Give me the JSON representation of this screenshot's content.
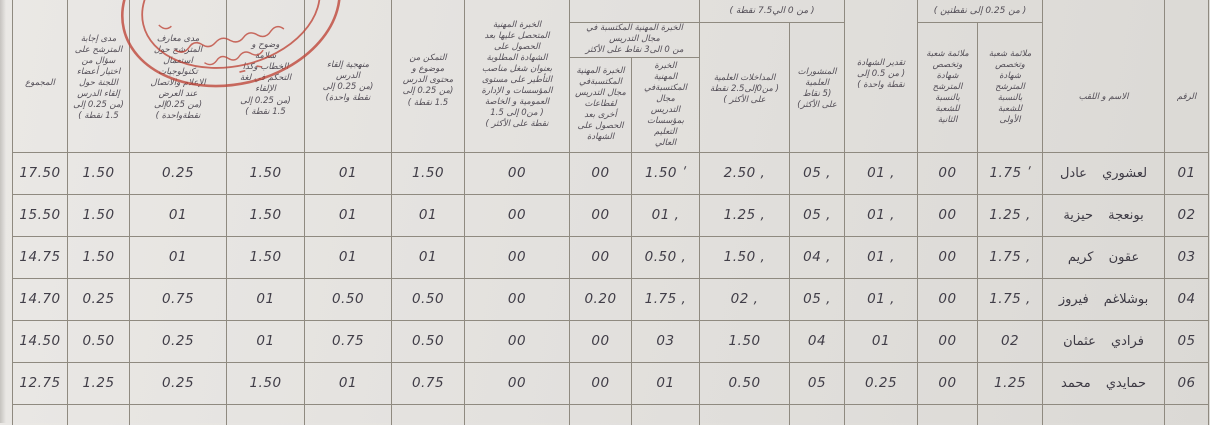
{
  "document": {
    "kind": "scanned evaluation score sheet (Arabic, RTL table)",
    "stamp_color": "#bf4538",
    "paper_color": "#e3e1de",
    "grid_color": "#8f8a80"
  },
  "table": {
    "strips": {
      "fit_group_range": "( من 0.25 إلى نقطتين )",
      "pubs_group_range": "( من 0 الي7.5 نقطة )",
      "experience_group_range_partial": "( من 0 الى3 نقاط )"
    },
    "headers": {
      "num": {
        "title": "الرقم"
      },
      "name": {
        "title": "الاسم و اللقب"
      },
      "fit1": {
        "title": "ملائمة شعبة\nوتخصص\nشهادة\nالمترشح\nبالنسبة\nللشعبة\nالأولى"
      },
      "fit2": {
        "title": "ملائمة شعبة\nوتخصص\nشهادة\nالمترشح\nبالنسبة\nللشعبة\nالثانية"
      },
      "grade": {
        "title": "تقدير الشهادة",
        "range": "( من 0.5 إلى\nنقطة واحدة )"
      },
      "pubs": {
        "title": "المنشورات\nالعلمية",
        "range": "(5 نقاط\nعلى الأكثر)"
      },
      "talks": {
        "title": "المداخلات العلمية",
        "range": "( من0إلى2.5 نقطة\nعلى الأكثر )"
      },
      "experience_group": {
        "title": "الخبرة المهنية المكتسبة في\nمجال التدريس\nمن 0 الى3 نقاط على الأكثر"
      },
      "higher": {
        "title": "الخبرة\nالمهنية\nالمكتسبةفي\nمجال\nالتدريس\nبمؤسسات\nالتعليم\nالعالي"
      },
      "sectors": {
        "title": "الخبرة المهنية\nالمكتسبةفي\nمجال التدريس\nلقطاعات\nأخرى بعد\nالحصول على\nالشهادة"
      },
      "framing": {
        "title": "الخبرة المهنية\nالمتحصل عليها بعد\nالحصول على\nالشهادة المطلوبة\nبعنوان شغل مناصب\nالتأطير على مستوى\nالمؤسسات و الإدارة\nالعمومية و الخاصة",
        "range": "( من0 إلى 1.5\nنقطة على الأكثر )"
      },
      "mastery": {
        "title": "التمكن من\nموضوع و\nمحتوى الدرس",
        "range": "(من 0.25 إلى\n1.5 نقطة )"
      },
      "method": {
        "title": "منهجية إلقاء\nالدرس",
        "range": "(من 0.25 إلى\nنقطة واحدة)"
      },
      "clarity": {
        "title": "وضوح و\nسلامة\nالخطاب وكذا\nالتحكم في لغة\nالإلقاء",
        "range": "(من 0.25 إلى\n1.5 نقطة )"
      },
      "ict": {
        "title": "مدى معارف\nالمترشح حول\nاستعمال\nتكنولوجيات\nالإعلام والاتصال\nعند العرض",
        "range": "(من 0.25إلى\nنقطةواحدة )"
      },
      "question": {
        "title": "مدى إجابة\nالمترشح على\nسؤال من\nاختيار أعضاء\nاللجنة حول\nإلقاء الدرس",
        "range": "(من 0.25 إلى\n1.5 نقطة )"
      },
      "total": {
        "title": "المجموع"
      }
    },
    "rows": [
      {
        "num": "01",
        "name": "لعشوري عادل",
        "fit1": "1.75 ʹ",
        "fit2": "00",
        "grade": "01 ,",
        "pubs": "05 ,",
        "talks": "2.50 ,",
        "higher": "1.50 ʹ",
        "sectors": "00",
        "framing": "00",
        "mastery": "1.50",
        "method": "01",
        "clarity": "1.50",
        "ict": "0.25",
        "question": "1.50",
        "total": "17.50"
      },
      {
        "num": "02",
        "name": "بونعجة حيزية",
        "fit1": "1.25 ,",
        "fit2": "00",
        "grade": "01 ,",
        "pubs": "05 ,",
        "talks": "1.25 ,",
        "higher": "01 ,",
        "sectors": "00",
        "framing": "00",
        "mastery": "01",
        "method": "01",
        "clarity": "1.50",
        "ict": "01",
        "question": "1.50",
        "total": "15.50"
      },
      {
        "num": "03",
        "name": "عقون كريم",
        "fit1": "1.75 ,",
        "fit2": "00",
        "grade": "01 ,",
        "pubs": "04 ,",
        "talks": "1.50 ,",
        "higher": "0.50 ,",
        "sectors": "00",
        "framing": "00",
        "mastery": "01",
        "method": "01",
        "clarity": "1.50",
        "ict": "01",
        "question": "1.50",
        "total": "14.75"
      },
      {
        "num": "04",
        "name": "بوشلاغم فيروز",
        "fit1": "1.75 ,",
        "fit2": "00",
        "grade": "01 ,",
        "pubs": "05 ,",
        "talks": "02 ,",
        "higher": "1.75 ,",
        "sectors": "0.20",
        "framing": "00",
        "mastery": "0.50",
        "method": "0.50",
        "clarity": "01",
        "ict": "0.75",
        "question": "0.25",
        "total": "14.70"
      },
      {
        "num": "05",
        "name": "فرادي عثمان",
        "fit1": "02",
        "fit2": "00",
        "grade": "01",
        "pubs": "04",
        "talks": "1.50",
        "higher": "03",
        "sectors": "00",
        "framing": "00",
        "mastery": "0.50",
        "method": "0.75",
        "clarity": "01",
        "ict": "0.25",
        "question": "0.50",
        "total": "14.50"
      },
      {
        "num": "06",
        "name": "حمايدي محمد",
        "fit1": "1.25",
        "fit2": "00",
        "grade": "0.25",
        "pubs": "05",
        "talks": "0.50",
        "higher": "01",
        "sectors": "00",
        "framing": "00",
        "mastery": "0.75",
        "method": "01",
        "clarity": "1.50",
        "ict": "0.25",
        "question": "1.25",
        "total": "12.75"
      }
    ]
  }
}
